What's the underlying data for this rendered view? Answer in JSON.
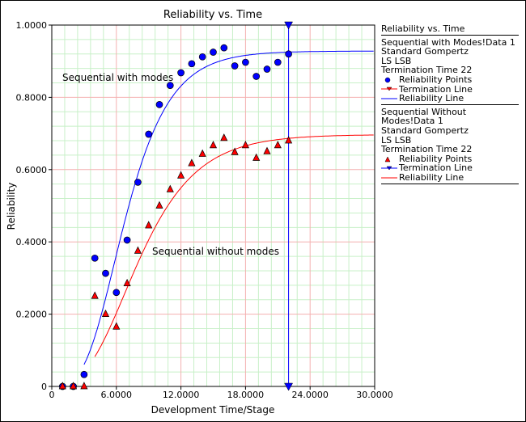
{
  "chart_data": {
    "type": "scatter",
    "title": "Reliability vs. Time",
    "xlabel": "Development Time/Stage",
    "ylabel": "Reliability",
    "xlim": [
      0,
      30
    ],
    "ylim": [
      0,
      1
    ],
    "x_ticks": [
      0,
      6,
      12,
      18,
      24,
      30
    ],
    "x_tick_labels": [
      "0",
      "6.0000",
      "12.0000",
      "18.0000",
      "24.0000",
      "30.0000"
    ],
    "y_ticks": [
      0,
      0.2,
      0.4,
      0.6,
      0.8,
      1.0
    ],
    "y_tick_labels": [
      "0",
      "0.2000",
      "0.4000",
      "0.6000",
      "0.8000",
      "1.0000"
    ],
    "grid": true,
    "legend_placement": "right",
    "termination_time": 22,
    "annotations": [
      "Sequential with modes",
      "Sequential without modes"
    ],
    "series": [
      {
        "name": "Sequential with Modes!Data 1",
        "model": "Standard Gompertz",
        "method": "LS LSB",
        "termination": "Termination Time 22",
        "color": "#0000ff",
        "marker": "circle",
        "x": [
          1,
          2,
          3,
          4,
          5,
          6,
          7,
          8,
          9,
          10,
          11,
          12,
          13,
          14,
          15,
          16,
          17,
          18,
          19,
          20,
          21,
          22
        ],
        "y": [
          0,
          0,
          0.033,
          0.355,
          0.313,
          0.26,
          0.405,
          0.565,
          0.698,
          0.78,
          0.833,
          0.868,
          0.893,
          0.912,
          0.925,
          0.937,
          0.887,
          0.897,
          0.858,
          0.878,
          0.897,
          0.92
        ],
        "fit": {
          "a": 0.928,
          "ln_b": -7.95,
          "c": 0.7,
          "start": 3
        }
      },
      {
        "name": "Sequential Without Modes!Data 1",
        "model": "Standard Gompertz",
        "method": "LS LSB",
        "termination": "Termination Time 22",
        "color": "#ff0000",
        "marker": "triangle",
        "x": [
          1,
          2,
          3,
          4,
          5,
          6,
          7,
          8,
          9,
          10,
          11,
          12,
          13,
          14,
          15,
          16,
          17,
          18,
          19,
          20,
          21,
          22
        ],
        "y": [
          0,
          0,
          0,
          0.25,
          0.2,
          0.165,
          0.285,
          0.375,
          0.445,
          0.5,
          0.545,
          0.583,
          0.617,
          0.643,
          0.667,
          0.687,
          0.648,
          0.667,
          0.632,
          0.65,
          0.667,
          0.68
        ],
        "fit": {
          "a": 0.697,
          "ln_b": -6.4,
          "c": 0.76,
          "start": 4
        }
      }
    ]
  },
  "legend": {
    "title": "Reliability vs. Time",
    "groups": [
      {
        "lines": [
          "Sequential with Modes!Data 1",
          "Standard Gompertz",
          "LS LSB",
          "Termination Time 22"
        ],
        "points": "Reliability Points",
        "term": "Termination Line",
        "rel": "Reliability Line"
      },
      {
        "lines": [
          "Sequential Without Modes!Data 1",
          "Standard Gompertz",
          "LS LSB",
          "Termination Time 22"
        ],
        "points": "Reliability Points",
        "term": "Termination Line",
        "rel": "Reliability Line"
      }
    ]
  }
}
